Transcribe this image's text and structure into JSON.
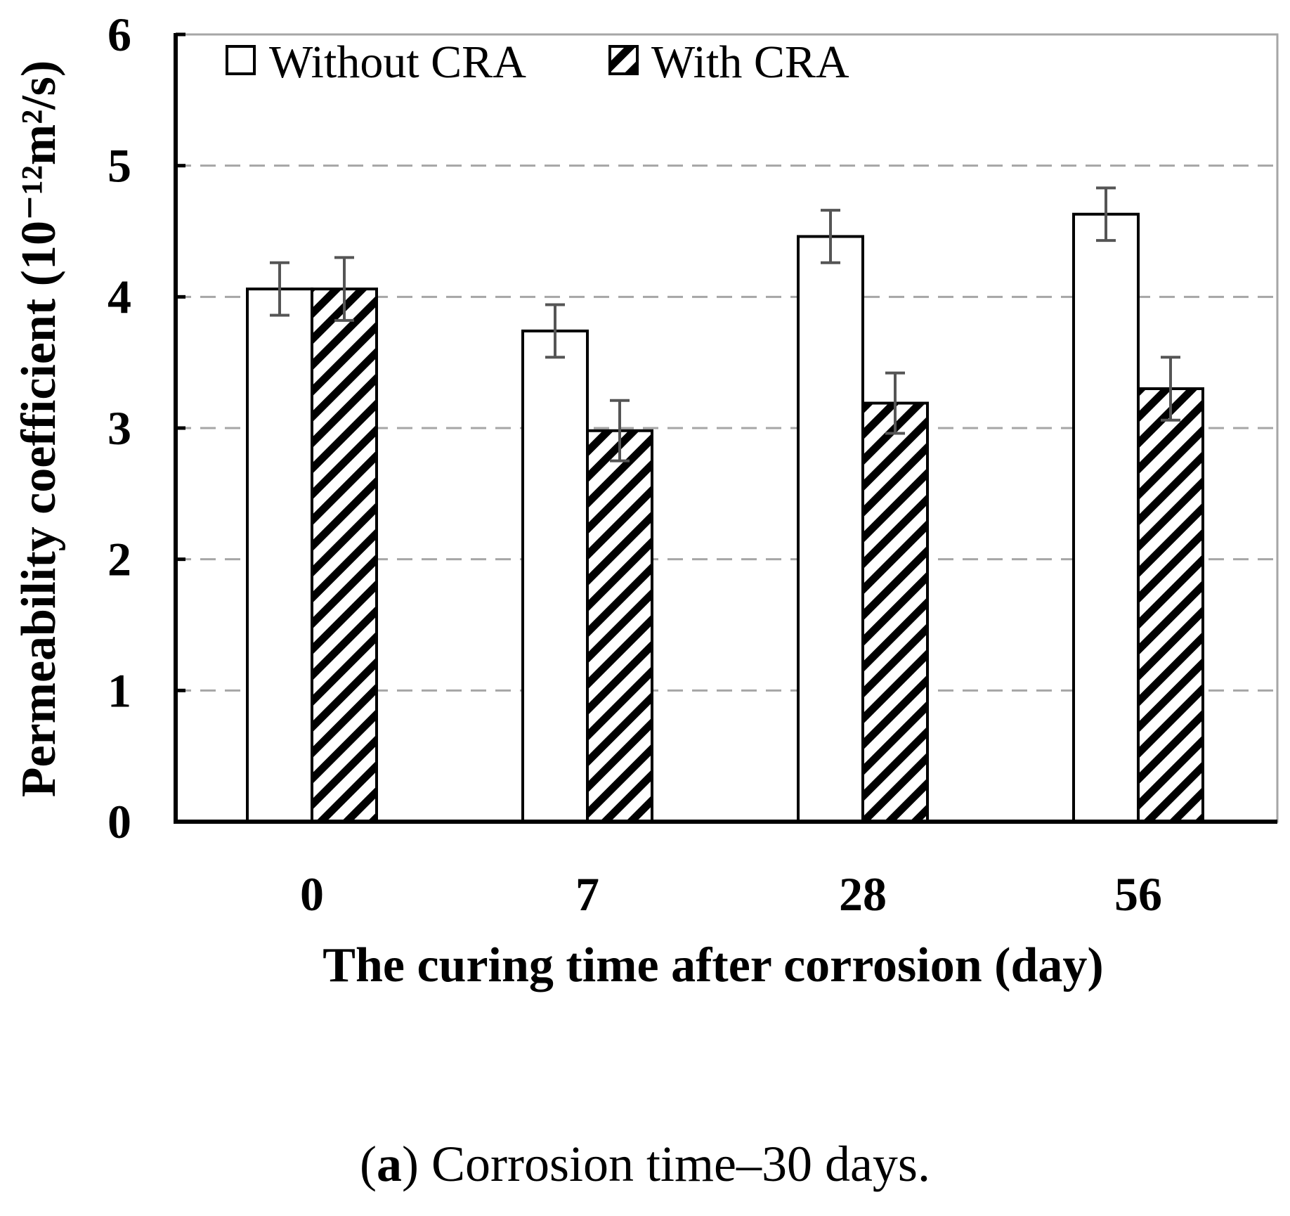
{
  "chart_data": {
    "type": "bar",
    "title": "",
    "xlabel": "The curing time after corrosion (day)",
    "ylabel": "Permeability coefficient (10⁻¹²m²/s)",
    "categories": [
      "0",
      "7",
      "28",
      "56"
    ],
    "ylim": [
      0,
      6
    ],
    "yticks": [
      "0",
      "1",
      "2",
      "3",
      "4",
      "5",
      "6"
    ],
    "grid": "horizontal dashed",
    "legend_position": "top-left",
    "series": [
      {
        "name": "Without CRA",
        "pattern": "white",
        "values": [
          4.06,
          3.74,
          4.46,
          4.63
        ],
        "errors": [
          0.2,
          0.2,
          0.2,
          0.2
        ]
      },
      {
        "name": "With CRA",
        "pattern": "hatched",
        "values": [
          4.06,
          2.98,
          3.19,
          3.3
        ],
        "errors": [
          0.24,
          0.23,
          0.23,
          0.24
        ]
      }
    ]
  },
  "caption": {
    "label": "a",
    "text": ") Corrosion time–30 days.",
    "open": "("
  },
  "colors": {
    "bar_outline": "#000000",
    "error_bar": "#555555",
    "grid": "#a6a6a6",
    "frame": "#a6a6a6"
  }
}
